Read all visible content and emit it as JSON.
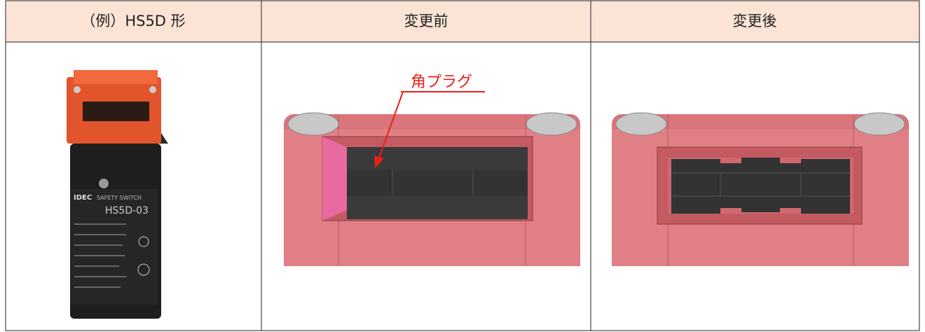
{
  "table": {
    "header": [
      "（例）HS5D 形",
      "変更前",
      "変更後"
    ]
  },
  "annotation": "角プラグ",
  "product_label": {
    "brand": "IDEC",
    "kind": "SAFETY SWITCH",
    "model": "HS5D-03"
  }
}
